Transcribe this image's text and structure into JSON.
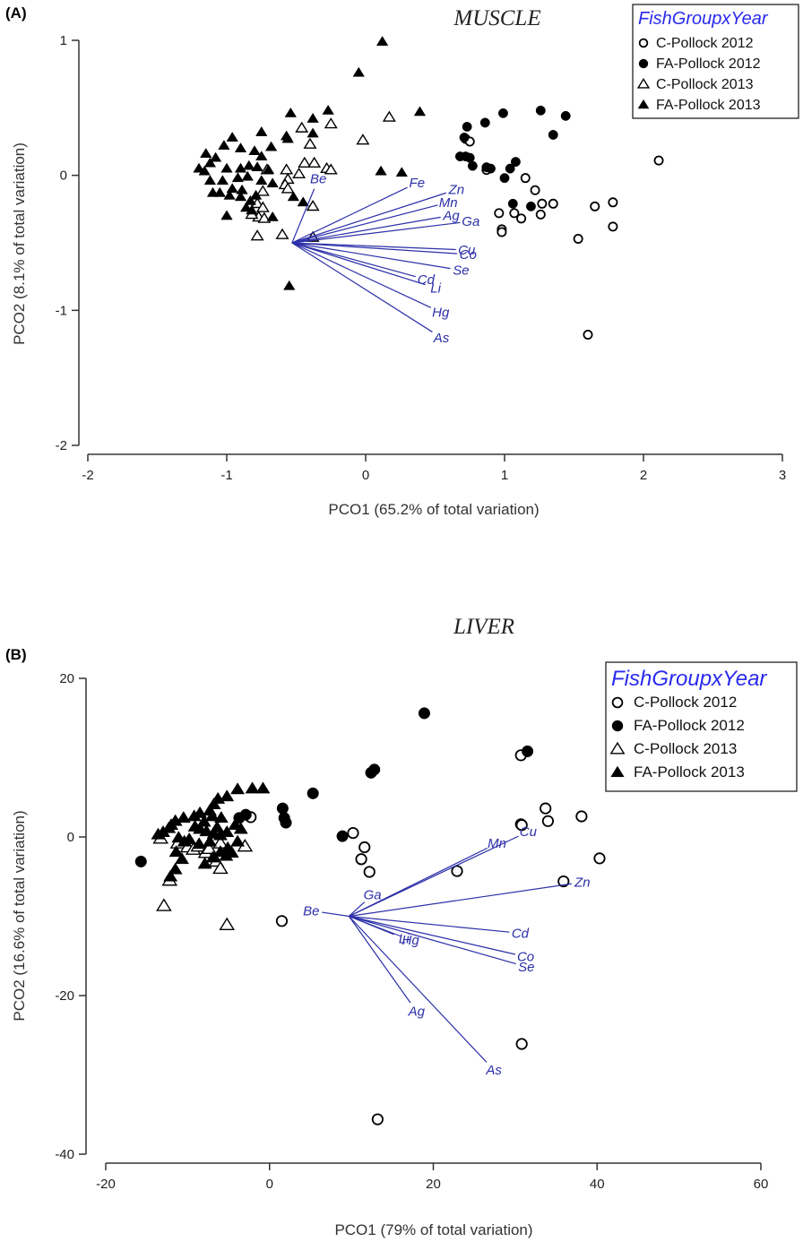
{
  "chart_data": [
    {
      "type": "scatter",
      "panel_label": "(A)",
      "title": "MUSCLE",
      "xlabel": "PCO1 (65.2% of total variation)",
      "ylabel": "PCO2 (8.1% of total variation)",
      "xlim": [
        -2,
        3
      ],
      "ylim": [
        -2,
        1
      ],
      "xticks": [
        "-2",
        "-1",
        "0",
        "1",
        "2",
        "3"
      ],
      "yticks": [
        "-2",
        "-1",
        "0",
        "1"
      ],
      "grid": false,
      "legend_position": "top-right",
      "legend_title": "FishGroupxYear",
      "series": [
        {
          "name": "C-Pollock 2012",
          "marker": "open-circle",
          "points": [
            [
              0.72,
              0.27
            ],
            [
              0.75,
              0.25
            ],
            [
              0.87,
              0.04
            ],
            [
              1.15,
              -0.02
            ],
            [
              1.22,
              -0.11
            ],
            [
              1.27,
              -0.21
            ],
            [
              1.35,
              -0.21
            ],
            [
              0.96,
              -0.28
            ],
            [
              1.07,
              -0.28
            ],
            [
              0.98,
              -0.4
            ],
            [
              0.98,
              -0.42
            ],
            [
              1.12,
              -0.32
            ],
            [
              1.26,
              -0.29
            ],
            [
              1.53,
              -0.47
            ],
            [
              1.65,
              -0.23
            ],
            [
              1.78,
              -0.2
            ],
            [
              1.78,
              -0.38
            ],
            [
              2.11,
              0.11
            ],
            [
              1.6,
              -1.18
            ]
          ]
        },
        {
          "name": "FA-Pollock 2012",
          "marker": "filled-circle",
          "points": [
            [
              0.73,
              0.36
            ],
            [
              0.86,
              0.39
            ],
            [
              0.99,
              0.46
            ],
            [
              1.26,
              0.48
            ],
            [
              1.44,
              0.44
            ],
            [
              1.35,
              0.3
            ],
            [
              0.71,
              0.28
            ],
            [
              0.68,
              0.14
            ],
            [
              0.72,
              0.14
            ],
            [
              0.75,
              0.13
            ],
            [
              0.77,
              0.07
            ],
            [
              0.87,
              0.06
            ],
            [
              0.9,
              0.05
            ],
            [
              1.04,
              0.05
            ],
            [
              1.08,
              0.1
            ],
            [
              1.0,
              -0.02
            ],
            [
              1.06,
              -0.21
            ],
            [
              1.19,
              -0.23
            ]
          ]
        },
        {
          "name": "C-Pollock 2013",
          "marker": "open-triangle",
          "points": [
            [
              -0.71,
              0.04
            ],
            [
              -0.57,
              0.04
            ],
            [
              -0.44,
              0.09
            ],
            [
              -0.28,
              0.05
            ],
            [
              -0.25,
              0.04
            ],
            [
              -0.4,
              0.23
            ],
            [
              -0.25,
              0.38
            ],
            [
              -0.46,
              0.35
            ],
            [
              -0.02,
              0.26
            ],
            [
              0.17,
              0.43
            ],
            [
              -0.37,
              0.09
            ],
            [
              -0.48,
              0.01
            ],
            [
              -0.56,
              -0.03
            ],
            [
              -0.58,
              -0.07
            ],
            [
              -0.56,
              -0.1
            ],
            [
              -0.74,
              -0.12
            ],
            [
              -0.78,
              -0.21
            ],
            [
              -0.74,
              -0.24
            ],
            [
              -0.77,
              -0.31
            ],
            [
              -0.82,
              -0.29
            ],
            [
              -0.73,
              -0.32
            ],
            [
              -0.6,
              -0.44
            ],
            [
              -0.78,
              -0.45
            ],
            [
              -0.38,
              -0.23
            ],
            [
              -0.38,
              -0.46
            ]
          ]
        },
        {
          "name": "FA-Pollock 2013",
          "marker": "filled-triangle",
          "points": [
            [
              0.12,
              0.99
            ],
            [
              -0.05,
              0.76
            ],
            [
              0.39,
              0.47
            ],
            [
              -0.27,
              0.48
            ],
            [
              -0.38,
              0.42
            ],
            [
              -0.54,
              0.46
            ],
            [
              -0.57,
              0.29
            ],
            [
              -0.38,
              0.31
            ],
            [
              -0.56,
              0.27
            ],
            [
              -0.75,
              0.32
            ],
            [
              -0.68,
              0.21
            ],
            [
              -0.96,
              0.28
            ],
            [
              -1.02,
              0.22
            ],
            [
              -0.9,
              0.2
            ],
            [
              -0.8,
              0.18
            ],
            [
              -0.75,
              0.14
            ],
            [
              -1.08,
              0.13
            ],
            [
              -1.15,
              0.16
            ],
            [
              -1.12,
              0.09
            ],
            [
              -1.2,
              0.05
            ],
            [
              -1.16,
              0.03
            ],
            [
              -1.0,
              0.05
            ],
            [
              -0.9,
              0.05
            ],
            [
              -0.84,
              0.07
            ],
            [
              -0.78,
              0.06
            ],
            [
              -0.7,
              0.04
            ],
            [
              -1.12,
              -0.04
            ],
            [
              -1.03,
              -0.04
            ],
            [
              -0.92,
              -0.02
            ],
            [
              -0.85,
              -0.01
            ],
            [
              -0.96,
              -0.1
            ],
            [
              -0.89,
              -0.11
            ],
            [
              -0.75,
              -0.04
            ],
            [
              -0.67,
              -0.06
            ],
            [
              -1.1,
              -0.13
            ],
            [
              -1.05,
              -0.13
            ],
            [
              -0.98,
              -0.15
            ],
            [
              -0.9,
              -0.16
            ],
            [
              -0.83,
              -0.19
            ],
            [
              -0.79,
              -0.15
            ],
            [
              -1.0,
              -0.3
            ],
            [
              -0.86,
              -0.24
            ],
            [
              -0.82,
              -0.26
            ],
            [
              -0.67,
              -0.31
            ],
            [
              -0.52,
              -0.16
            ],
            [
              -0.45,
              -0.2
            ],
            [
              -0.55,
              -0.82
            ],
            [
              0.11,
              0.03
            ],
            [
              0.26,
              0.02
            ]
          ]
        }
      ],
      "vectors": {
        "origin": [
          -0.53,
          -0.5
        ],
        "items": [
          {
            "label": "Be",
            "end": [
              -0.37,
              -0.1
            ]
          },
          {
            "label": "Fe",
            "end": [
              0.3,
              -0.09
            ]
          },
          {
            "label": "Zn",
            "end": [
              0.58,
              -0.13
            ]
          },
          {
            "label": "Mn",
            "end": [
              0.52,
              -0.22
            ]
          },
          {
            "label": "Ag",
            "end": [
              0.54,
              -0.31
            ]
          },
          {
            "label": "Ga",
            "end": [
              0.68,
              -0.35
            ]
          },
          {
            "label": "Cu",
            "end": [
              0.65,
              -0.55
            ]
          },
          {
            "label": "Co",
            "end": [
              0.66,
              -0.58
            ]
          },
          {
            "label": "Cd",
            "end": [
              0.36,
              -0.75
            ]
          },
          {
            "label": "Li",
            "end": [
              0.43,
              -0.81
            ]
          },
          {
            "label": "Se",
            "end": [
              0.61,
              -0.69
            ]
          },
          {
            "label": "Hg",
            "end": [
              0.47,
              -0.98
            ]
          },
          {
            "label": "As",
            "end": [
              0.48,
              -1.16
            ]
          }
        ]
      }
    },
    {
      "type": "scatter",
      "panel_label": "(B)",
      "title": "LIVER",
      "xlabel": "PCO1 (79% of total variation)",
      "ylabel": "PCO2 (16.6% of total variation)",
      "xlim": [
        -20,
        60
      ],
      "ylim": [
        -40,
        20
      ],
      "xticks": [
        "-20",
        "0",
        "20",
        "40",
        "60"
      ],
      "yticks": [
        "-40",
        "-20",
        "0",
        "20"
      ],
      "grid": false,
      "legend_position": "top-right",
      "legend_title": "FishGroupxYear",
      "series": [
        {
          "name": "C-Pollock 2012",
          "marker": "open-circle",
          "points": [
            [
              30.7,
              10.3
            ],
            [
              33.7,
              3.6
            ],
            [
              34.0,
              2.0
            ],
            [
              38.1,
              2.6
            ],
            [
              30.7,
              1.6
            ],
            [
              30.8,
              1.5
            ],
            [
              40.3,
              -2.7
            ],
            [
              35.9,
              -5.6
            ],
            [
              22.9,
              -4.3
            ],
            [
              10.2,
              0.5
            ],
            [
              11.6,
              -1.3
            ],
            [
              11.2,
              -2.8
            ],
            [
              12.2,
              -4.4
            ],
            [
              1.5,
              -10.6
            ],
            [
              30.8,
              -26.1
            ],
            [
              13.2,
              -35.6
            ],
            [
              -2.3,
              2.5
            ]
          ]
        },
        {
          "name": "FA-Pollock 2012",
          "marker": "filled-circle",
          "points": [
            [
              18.9,
              15.6
            ],
            [
              31.5,
              10.8
            ],
            [
              12.8,
              8.5
            ],
            [
              12.4,
              8.1
            ],
            [
              5.3,
              5.5
            ],
            [
              1.6,
              3.6
            ],
            [
              1.8,
              2.4
            ],
            [
              2.0,
              1.8
            ],
            [
              8.9,
              0.1
            ],
            [
              -15.7,
              -3.1
            ],
            [
              -3.7,
              2.4
            ],
            [
              -2.9,
              2.8
            ]
          ]
        },
        {
          "name": "C-Pollock 2013",
          "marker": "open-triangle",
          "points": [
            [
              -13.3,
              -0.2
            ],
            [
              -11.2,
              -0.8
            ],
            [
              -10.0,
              -1.3
            ],
            [
              -9.3,
              -1.6
            ],
            [
              -8.7,
              -1.2
            ],
            [
              -7.8,
              -2.0
            ],
            [
              -7.4,
              -1.5
            ],
            [
              -6.5,
              -3.1
            ],
            [
              -6.0,
              -0.8
            ],
            [
              -3.0,
              -1.2
            ],
            [
              -12.2,
              -5.5
            ],
            [
              -6.0,
              -4.0
            ],
            [
              -12.9,
              -8.7
            ],
            [
              -5.2,
              -11.1
            ]
          ]
        },
        {
          "name": "FA-Pollock 2013",
          "marker": "filled-triangle",
          "points": [
            [
              -0.8,
              6.1
            ],
            [
              -2.1,
              6.1
            ],
            [
              -3.9,
              6.0
            ],
            [
              -5.2,
              5.1
            ],
            [
              -6.3,
              4.8
            ],
            [
              -6.8,
              4.1
            ],
            [
              -7.3,
              3.3
            ],
            [
              -8.5,
              3.0
            ],
            [
              -9.2,
              2.6
            ],
            [
              -10.5,
              2.4
            ],
            [
              -11.5,
              2.0
            ],
            [
              -12.0,
              1.5
            ],
            [
              -12.3,
              1.1
            ],
            [
              -13.0,
              0.6
            ],
            [
              -13.6,
              0.3
            ],
            [
              -9.1,
              1.3
            ],
            [
              -8.5,
              1.0
            ],
            [
              -7.7,
              0.7
            ],
            [
              -6.8,
              0.4
            ],
            [
              -6.0,
              0.2
            ],
            [
              -5.2,
              0.6
            ],
            [
              -11.1,
              -0.1
            ],
            [
              -10.4,
              -0.6
            ],
            [
              -9.8,
              -0.3
            ],
            [
              -8.6,
              -0.9
            ],
            [
              -7.3,
              -0.6
            ],
            [
              -6.0,
              -1.9
            ],
            [
              -5.3,
              -2.4
            ],
            [
              -4.6,
              -2.0
            ],
            [
              -11.4,
              -1.9
            ],
            [
              -10.7,
              -2.8
            ],
            [
              -11.5,
              -4.1
            ],
            [
              -12.1,
              -5.0
            ],
            [
              -7.9,
              -3.4
            ],
            [
              -6.9,
              -2.6
            ],
            [
              -5.1,
              -1.4
            ],
            [
              -3.9,
              -0.6
            ],
            [
              -3.5,
              1.0
            ],
            [
              -4.2,
              1.5
            ],
            [
              -6.4,
              1.2
            ],
            [
              -8.0,
              1.9
            ],
            [
              -5.9,
              2.4
            ],
            [
              -7.0,
              2.6
            ]
          ]
        }
      ],
      "vectors": {
        "origin": [
          9.7,
          -10.0
        ],
        "items": [
          {
            "label": "Be",
            "end": [
              6.4,
              -9.5
            ]
          },
          {
            "label": "Ga",
            "end": [
              11.6,
              -8.2
            ]
          },
          {
            "label": "Cu",
            "end": [
              30.4,
              0.1
            ]
          },
          {
            "label": "Mn",
            "end": [
              26.6,
              -1.4
            ]
          },
          {
            "label": "Zn",
            "end": [
              36.9,
              -5.9
            ]
          },
          {
            "label": "Li",
            "end": [
              15.2,
              -12.3
            ]
          },
          {
            "label": "Hg",
            "end": [
              16.0,
              -12.5
            ]
          },
          {
            "label": "Cd",
            "end": [
              29.3,
              -12.0
            ]
          },
          {
            "label": "Co",
            "end": [
              30.0,
              -14.8
            ]
          },
          {
            "label": "Se",
            "end": [
              30.1,
              -16.0
            ]
          },
          {
            "label": "Ag",
            "end": [
              17.2,
              -20.9
            ]
          },
          {
            "label": "As",
            "end": [
              26.5,
              -28.4
            ]
          }
        ]
      }
    }
  ],
  "colors": {
    "axis": "#333333",
    "vector": "#2b2fa8",
    "legend_title": "#2a2aee",
    "marker": "#000000"
  }
}
